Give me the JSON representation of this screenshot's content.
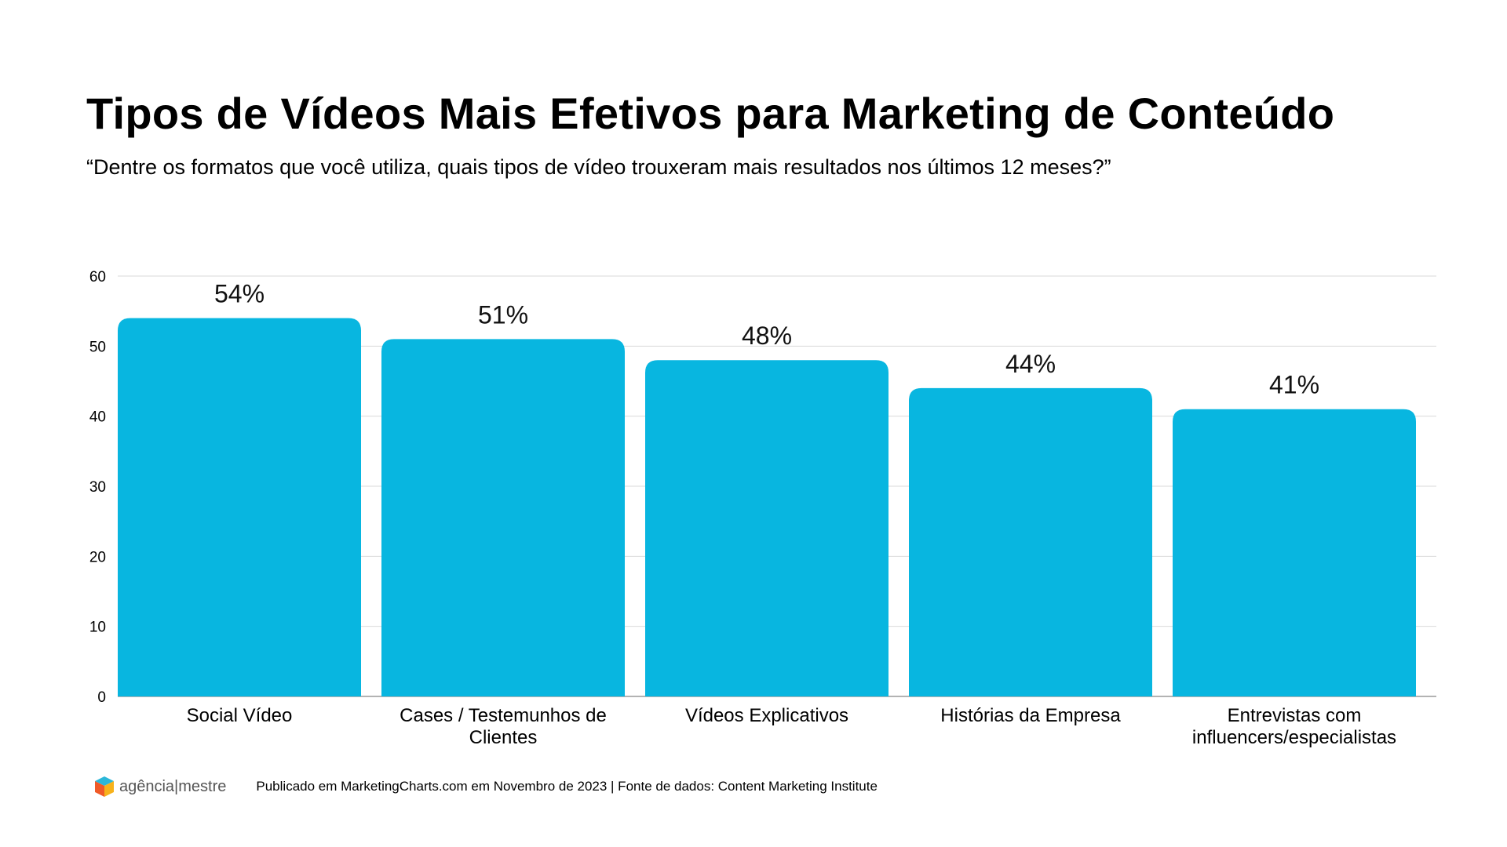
{
  "title": "Tipos de Vídeos Mais Efetivos para Marketing de Conteúdo",
  "subtitle": "“Dentre os formatos que você utiliza, quais tipos de vídeo trouxeram mais resultados nos últimos 12 meses?”",
  "chart_data": {
    "type": "bar",
    "categories": [
      [
        "Social Vídeo"
      ],
      [
        "Cases / Testemunhos de",
        "Clientes"
      ],
      [
        "Vídeos Explicativos"
      ],
      [
        "Histórias da Empresa"
      ],
      [
        "Entrevistas com",
        "influencers/especialistas"
      ]
    ],
    "values": [
      54,
      51,
      48,
      44,
      41
    ],
    "data_labels": [
      "54%",
      "51%",
      "48%",
      "44%",
      "41%"
    ],
    "yticks": [
      "0",
      "10",
      "20",
      "30",
      "40",
      "50",
      "60"
    ],
    "ylim": [
      0,
      60
    ],
    "grid": true,
    "bar_color": "#08B6E0"
  },
  "footer": {
    "logo_text": "agência|mestre",
    "logo_icon": "cube-logo-icon",
    "note": "Publicado em MarketingCharts.com em Novembro de 2023 | Fonte de dados: Content Marketing Institute"
  }
}
